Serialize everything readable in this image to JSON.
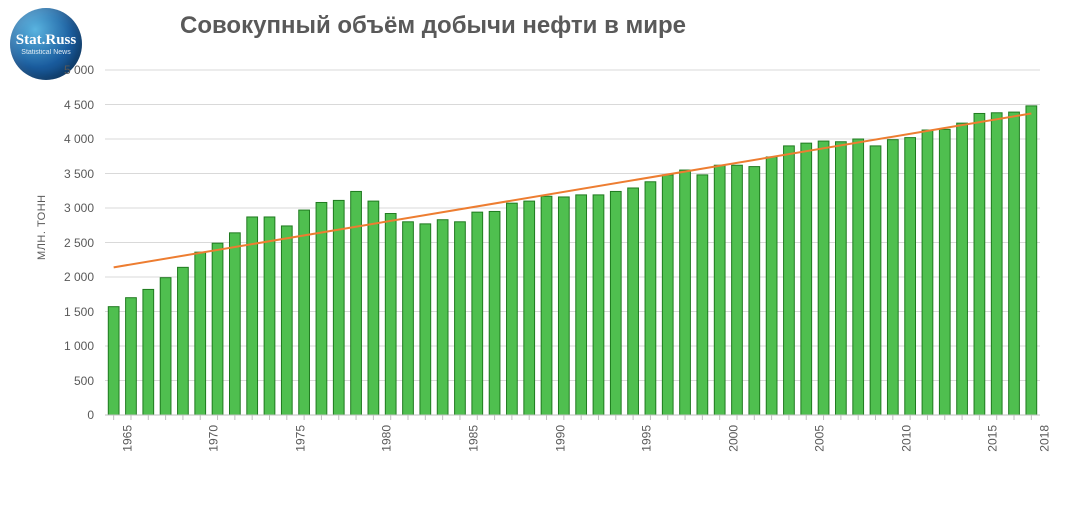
{
  "logo": {
    "main": "Stat.Russ",
    "sub": "Statistical   News"
  },
  "chart": {
    "type": "bar+trendline",
    "title": "Совокупный объём добычи нефти в мире",
    "y_axis_label": "млн. тонн",
    "background_color": "#ffffff",
    "grid_color": "#d9d9d9",
    "axis_color": "#bfbfbf",
    "label_color": "#595959",
    "title_fontsize": 24,
    "label_fontsize": 12,
    "ylim": [
      0,
      5000
    ],
    "ytick_step": 500,
    "yticks": [
      0,
      500,
      1000,
      1500,
      2000,
      2500,
      3000,
      3500,
      4000,
      4500,
      5000
    ],
    "ytick_labels": [
      "0",
      "500",
      "1 000",
      "1 500",
      "2 000",
      "2 500",
      "3 000",
      "3 500",
      "4 000",
      "4 500",
      "5 000"
    ],
    "xticks": [
      1965,
      1970,
      1975,
      1980,
      1985,
      1990,
      1995,
      2000,
      2005,
      2010,
      2015,
      2018
    ],
    "bar_fill": "#4fbf4f",
    "bar_stroke": "#1f7a1f",
    "bar_stroke_width": 1,
    "bar_width_ratio": 0.62,
    "trend_color": "#ed7d31",
    "trend_width": 2,
    "trend_start": {
      "year": 1965,
      "value": 2140
    },
    "trend_end": {
      "year": 2018,
      "value": 4370
    },
    "data": [
      {
        "year": 1965,
        "value": 1570
      },
      {
        "year": 1966,
        "value": 1700
      },
      {
        "year": 1967,
        "value": 1820
      },
      {
        "year": 1968,
        "value": 1990
      },
      {
        "year": 1969,
        "value": 2140
      },
      {
        "year": 1970,
        "value": 2360
      },
      {
        "year": 1971,
        "value": 2490
      },
      {
        "year": 1972,
        "value": 2640
      },
      {
        "year": 1973,
        "value": 2870
      },
      {
        "year": 1974,
        "value": 2870
      },
      {
        "year": 1975,
        "value": 2740
      },
      {
        "year": 1976,
        "value": 2970
      },
      {
        "year": 1977,
        "value": 3080
      },
      {
        "year": 1978,
        "value": 3110
      },
      {
        "year": 1979,
        "value": 3240
      },
      {
        "year": 1980,
        "value": 3100
      },
      {
        "year": 1981,
        "value": 2920
      },
      {
        "year": 1982,
        "value": 2800
      },
      {
        "year": 1983,
        "value": 2770
      },
      {
        "year": 1984,
        "value": 2830
      },
      {
        "year": 1985,
        "value": 2800
      },
      {
        "year": 1986,
        "value": 2940
      },
      {
        "year": 1987,
        "value": 2950
      },
      {
        "year": 1988,
        "value": 3070
      },
      {
        "year": 1989,
        "value": 3100
      },
      {
        "year": 1990,
        "value": 3170
      },
      {
        "year": 1991,
        "value": 3160
      },
      {
        "year": 1992,
        "value": 3190
      },
      {
        "year": 1993,
        "value": 3190
      },
      {
        "year": 1994,
        "value": 3240
      },
      {
        "year": 1995,
        "value": 3290
      },
      {
        "year": 1996,
        "value": 3380
      },
      {
        "year": 1997,
        "value": 3480
      },
      {
        "year": 1998,
        "value": 3550
      },
      {
        "year": 1999,
        "value": 3480
      },
      {
        "year": 2000,
        "value": 3620
      },
      {
        "year": 2001,
        "value": 3620
      },
      {
        "year": 2002,
        "value": 3600
      },
      {
        "year": 2003,
        "value": 3740
      },
      {
        "year": 2004,
        "value": 3900
      },
      {
        "year": 2005,
        "value": 3940
      },
      {
        "year": 2006,
        "value": 3970
      },
      {
        "year": 2007,
        "value": 3960
      },
      {
        "year": 2008,
        "value": 4000
      },
      {
        "year": 2009,
        "value": 3900
      },
      {
        "year": 2010,
        "value": 3990
      },
      {
        "year": 2011,
        "value": 4020
      },
      {
        "year": 2012,
        "value": 4130
      },
      {
        "year": 2013,
        "value": 4140
      },
      {
        "year": 2014,
        "value": 4230
      },
      {
        "year": 2015,
        "value": 4370
      },
      {
        "year": 2016,
        "value": 4380
      },
      {
        "year": 2017,
        "value": 4390
      },
      {
        "year": 2018,
        "value": 4480
      }
    ]
  }
}
